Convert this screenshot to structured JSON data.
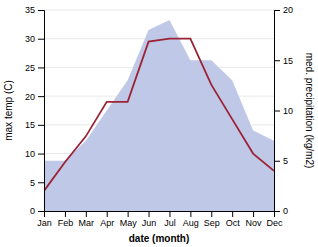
{
  "chart_data": {
    "type": "line",
    "xlabel": "date (month)",
    "ylabel": "max temp (C)",
    "y2label": "med. precipitation (kg/m2)",
    "categories": [
      "Jan",
      "Feb",
      "Mar",
      "Apr",
      "May",
      "Jun",
      "Jul",
      "Aug",
      "Sep",
      "Oct",
      "Nov",
      "Dec"
    ],
    "series": [
      {
        "type": "area",
        "axis": "y2",
        "color": "#c0c8e8",
        "values": [
          5.0,
          5.0,
          7.0,
          10.0,
          13.0,
          18.0,
          19.0,
          15.0,
          15.0,
          13.0,
          8.0,
          7.0
        ]
      },
      {
        "type": "line",
        "color": "#9b2335",
        "values": [
          3.5,
          8.5,
          13.0,
          19.0,
          19.0,
          29.5,
          30.0,
          30.0,
          22.0,
          16.0,
          10.0,
          7.0
        ]
      }
    ],
    "ylim": [
      0,
      35
    ],
    "yticks": [
      0,
      5,
      10,
      15,
      20,
      25,
      30,
      35
    ],
    "y2lim": [
      0,
      20
    ],
    "y2ticks": [
      0,
      5,
      10,
      15,
      20
    ],
    "grid": true
  }
}
